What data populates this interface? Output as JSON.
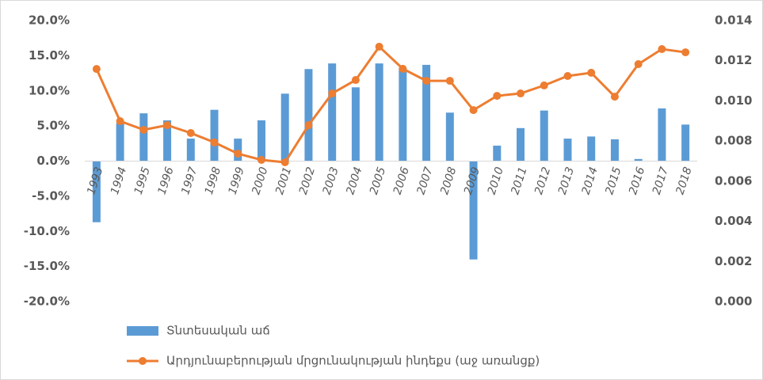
{
  "chart_data": {
    "type": "bar-line",
    "categories": [
      "1993",
      "1994",
      "1995",
      "1996",
      "1997",
      "1998",
      "1999",
      "2000",
      "2001",
      "2002",
      "2003",
      "2004",
      "2005",
      "2006",
      "2007",
      "2008",
      "2009",
      "2010",
      "2011",
      "2012",
      "2013",
      "2014",
      "2015",
      "2016",
      "2017",
      "2018"
    ],
    "series": [
      {
        "name": "Տնտեսական աճ",
        "type": "bar",
        "color": "#5b9bd5",
        "values": [
          -8.7,
          5.4,
          6.8,
          5.8,
          3.2,
          7.3,
          3.2,
          5.8,
          9.6,
          13.1,
          13.9,
          10.5,
          13.9,
          13.2,
          13.7,
          6.9,
          -14.0,
          2.2,
          4.7,
          7.2,
          3.2,
          3.5,
          3.1,
          0.3,
          7.5,
          5.2
        ]
      },
      {
        "name": "Արդյունաբերության մրցունակության ինդեքս (աջ առանցք)",
        "type": "line",
        "axis": "y2",
        "color": "#ed7d31",
        "values": [
          0.01159,
          0.00899,
          0.00856,
          0.00879,
          0.0084,
          0.00793,
          0.00737,
          0.00706,
          0.00694,
          0.00879,
          0.01037,
          0.01104,
          0.0127,
          0.0116,
          0.011,
          0.011,
          0.00954,
          0.01025,
          0.01037,
          0.01077,
          0.01124,
          0.0114,
          0.01021,
          0.01183,
          0.01258,
          0.01242
        ]
      }
    ],
    "ylim": [
      -20,
      20
    ],
    "yticks": [
      {
        "value": -20,
        "label": "-20.0%"
      },
      {
        "value": -15,
        "label": "-15.0%"
      },
      {
        "value": -10,
        "label": "-10.0%"
      },
      {
        "value": -5,
        "label": "-5.0%"
      },
      {
        "value": 0,
        "label": "0.0%"
      },
      {
        "value": 5,
        "label": "5.0%"
      },
      {
        "value": 10,
        "label": "10.0%"
      },
      {
        "value": 15,
        "label": "15.0%"
      },
      {
        "value": 20,
        "label": "20.0%"
      }
    ],
    "y2lim": [
      0,
      0.014
    ],
    "y2ticks": [
      {
        "value": 0,
        "label": "0.000"
      },
      0.002,
      0.004,
      0.006,
      0.008,
      {
        "value": 0.01,
        "label": "0.010"
      },
      0.012,
      0.014
    ],
    "grid": false,
    "legend": "bottom"
  }
}
